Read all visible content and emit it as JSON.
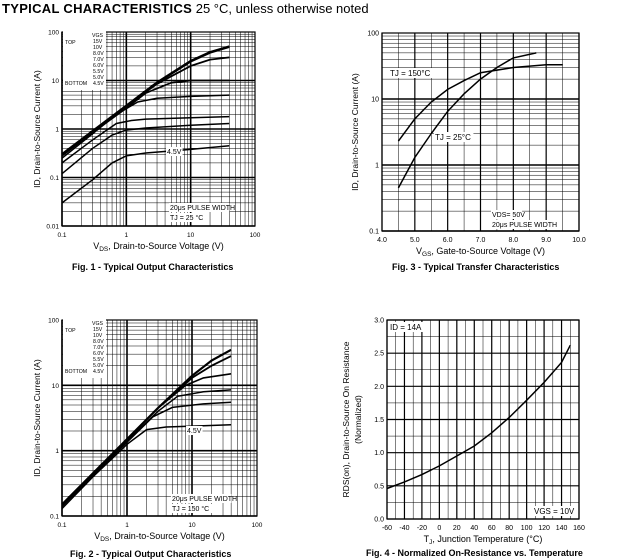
{
  "header": {
    "title_bold": "TYPICAL CHARACTERISTICS",
    "title_rest": " 25 °C, unless otherwise noted"
  },
  "chart_data": [
    {
      "type": "line",
      "caption": "Fig. 1 - Typical Output Characteristics",
      "xlabel_sub": "DS",
      "xlabel_pre": "V",
      "xlabel_post": ", Drain-to-Source Voltage (V)",
      "ylabel": "ID, Drain-to-Source Current (A)",
      "xscale": "log",
      "yscale": "log",
      "xlim": [
        0.1,
        100
      ],
      "ylim": [
        0.01,
        100
      ],
      "xticks": [
        "0.1",
        "1",
        "10",
        "100"
      ],
      "yticks": [
        "0.01",
        "0.1",
        "1",
        "10",
        "100"
      ],
      "legend": {
        "header": "VGS",
        "top_label": "TOP",
        "bottom_label": "BOTTOM",
        "entries": [
          "15V",
          "10V",
          "8.0V",
          "7.0V",
          "6.0V",
          "5.5V",
          "5.0V",
          "4.5V"
        ]
      },
      "annotations": [
        "20μs PULSE WIDTH",
        "TJ = 25 °C",
        "4.5V"
      ],
      "series": [
        {
          "x": [
            0.1,
            0.3,
            1,
            3,
            10,
            20,
            40
          ],
          "y": [
            0.3,
            0.9,
            3,
            9,
            25,
            38,
            50
          ]
        },
        {
          "x": [
            0.1,
            0.3,
            1,
            3,
            10,
            20,
            40
          ],
          "y": [
            0.3,
            0.9,
            3,
            8.5,
            20,
            27,
            30
          ]
        },
        {
          "x": [
            0.1,
            0.3,
            1,
            2,
            5,
            10,
            40
          ],
          "y": [
            0.28,
            0.85,
            2.7,
            5.5,
            9,
            10,
            10
          ]
        },
        {
          "x": [
            0.1,
            0.3,
            0.7,
            1.5,
            3,
            10,
            40
          ],
          "y": [
            0.25,
            0.8,
            2,
            3.6,
            4.3,
            4.7,
            5
          ]
        },
        {
          "x": [
            0.1,
            0.3,
            0.7,
            1.2,
            2,
            10,
            40
          ],
          "y": [
            0.2,
            0.6,
            1.3,
            1.5,
            1.6,
            1.7,
            1.8
          ]
        },
        {
          "x": [
            0.1,
            0.3,
            0.6,
            1,
            2,
            10,
            40
          ],
          "y": [
            0.12,
            0.4,
            0.75,
            0.95,
            1.05,
            1.2,
            1.3
          ]
        },
        {
          "x": [
            0.1,
            0.3,
            0.6,
            1,
            2,
            10,
            40
          ],
          "y": [
            0.03,
            0.09,
            0.2,
            0.28,
            0.32,
            0.38,
            0.45
          ]
        }
      ]
    },
    {
      "type": "line",
      "caption": "Fig. 3 - Typical Transfer Characteristics",
      "xlabel_sub": "GS",
      "xlabel_pre": "V",
      "xlabel_post": ", Gate-to-Source Voltage (V)",
      "ylabel": "ID, Drain-to-Source Current (A)",
      "xscale": "linear",
      "yscale": "log",
      "xlim": [
        4.0,
        10.0
      ],
      "ylim": [
        0.1,
        100
      ],
      "xticks": [
        "4.0",
        "5.0",
        "6.0",
        "7.0",
        "8.0",
        "9.0",
        "10.0"
      ],
      "yticks": [
        "0.1",
        "1",
        "10",
        "100"
      ],
      "annotations": [
        "TJ = 150°C",
        "TJ = 25°C",
        "VDS= 50V",
        "20μs PULSE WIDTH"
      ],
      "series": [
        {
          "name": "TJ = 150°C",
          "x": [
            4.5,
            5.0,
            5.5,
            6.0,
            6.5,
            7.0,
            8.0,
            9.0,
            9.5
          ],
          "y": [
            2.3,
            5,
            9,
            14,
            19,
            25,
            30,
            33,
            33
          ]
        },
        {
          "name": "TJ = 25°C",
          "x": [
            4.5,
            5.0,
            5.5,
            6.0,
            6.5,
            7.0,
            7.5,
            8.0,
            8.7
          ],
          "y": [
            0.45,
            1.3,
            3,
            6.5,
            12,
            20,
            30,
            42,
            50
          ]
        }
      ]
    },
    {
      "type": "line",
      "caption": "Fig. 2 - Typical Output Characteristics",
      "xlabel_sub": "DS",
      "xlabel_pre": "V",
      "xlabel_post": ", Drain-to-Source Voltage (V)",
      "ylabel": "ID, Drain-to-Source Current (A)",
      "xscale": "log",
      "yscale": "log",
      "xlim": [
        0.1,
        100
      ],
      "ylim": [
        0.1,
        100
      ],
      "xticks": [
        "0.1",
        "1",
        "10",
        "100"
      ],
      "yticks": [
        "0.1",
        "1",
        "10",
        "100"
      ],
      "legend": {
        "header": "VGS",
        "top_label": "TOP",
        "bottom_label": "BOTTOM",
        "entries": [
          "15V",
          "10V",
          "8.0V",
          "7.0V",
          "6.0V",
          "5.5V",
          "5.0V",
          "4.5V"
        ]
      },
      "annotations": [
        "20μs PULSE WIDTH",
        "TJ = 150 °C",
        "4.5V"
      ],
      "series": [
        {
          "x": [
            0.1,
            0.3,
            1,
            3,
            10,
            20,
            40
          ],
          "y": [
            0.15,
            0.45,
            1.5,
            4.5,
            14,
            24,
            35
          ]
        },
        {
          "x": [
            0.1,
            0.3,
            1,
            3,
            10,
            20,
            40
          ],
          "y": [
            0.15,
            0.45,
            1.5,
            4.5,
            13,
            20,
            28
          ]
        },
        {
          "x": [
            0.1,
            0.3,
            1,
            3,
            8,
            15,
            40
          ],
          "y": [
            0.15,
            0.45,
            1.5,
            4.5,
            10,
            13,
            15
          ]
        },
        {
          "x": [
            0.1,
            0.3,
            1,
            3,
            6,
            15,
            40
          ],
          "y": [
            0.14,
            0.43,
            1.4,
            4,
            6.8,
            8,
            8.5
          ]
        },
        {
          "x": [
            0.1,
            0.3,
            1,
            2.5,
            5,
            15,
            40
          ],
          "y": [
            0.14,
            0.42,
            1.35,
            3.3,
            4.6,
            5.2,
            5.5
          ]
        },
        {
          "x": [
            0.1,
            0.3,
            1,
            2,
            4,
            15,
            40
          ],
          "y": [
            0.13,
            0.4,
            1.25,
            2.1,
            2.3,
            2.4,
            2.5
          ]
        }
      ]
    },
    {
      "type": "line",
      "caption": "Fig. 4 - Normalized On-Resistance vs. Temperature",
      "xlabel_sub": "J",
      "xlabel_pre": "T",
      "xlabel_post": ", Junction Temperature (°C)",
      "ylabel": "RDS(on), Drain-to-Source On Resistance (Normalized)",
      "xscale": "linear",
      "yscale": "linear",
      "xlim": [
        -60,
        160
      ],
      "ylim": [
        0.0,
        3.0
      ],
      "xticks": [
        "-60",
        "-40",
        "-20",
        "0",
        "20",
        "40",
        "60",
        "80",
        "100",
        "120",
        "140",
        "160"
      ],
      "yticks": [
        "0.0",
        "0.5",
        "1.0",
        "1.5",
        "2.0",
        "2.5",
        "3.0"
      ],
      "annotations": [
        "ID = 14A",
        "VGS = 10V"
      ],
      "series": [
        {
          "x": [
            -60,
            -40,
            -20,
            0,
            20,
            40,
            60,
            80,
            100,
            120,
            140,
            150
          ],
          "y": [
            0.46,
            0.56,
            0.67,
            0.8,
            0.95,
            1.1,
            1.3,
            1.53,
            1.79,
            2.06,
            2.36,
            2.62
          ]
        }
      ]
    }
  ]
}
